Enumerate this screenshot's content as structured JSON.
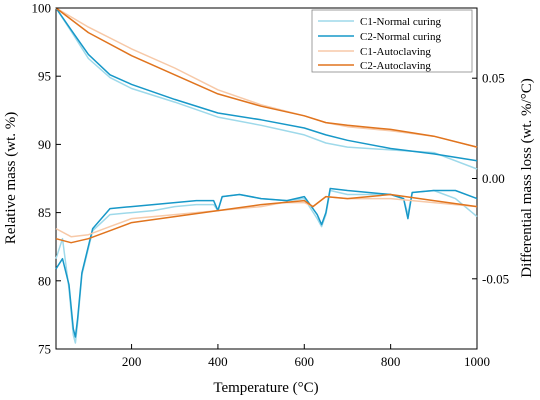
{
  "chart_data": {
    "type": "line",
    "title": "",
    "xlabel": "Temperature (°C)",
    "ylabel_left": "Relative mass (wt. %)",
    "ylabel_right": "Differential mass loss (wt. %/°C)",
    "xlim": [
      25,
      1000
    ],
    "ylim_left": [
      75,
      100
    ],
    "ylim_right": [
      -0.085,
      0.085
    ],
    "x_ticks": [
      200,
      400,
      600,
      800,
      1000
    ],
    "y_left_ticks": [
      75,
      80,
      85,
      90,
      95,
      100
    ],
    "y_right_ticks": [
      -0.05,
      0.0,
      0.05
    ],
    "y_right_tick_labels": [
      "-0.05",
      "0.00",
      "0.05"
    ],
    "grid": false,
    "legend_position": "top-right",
    "legend": [
      {
        "name": "C1-Normal curing",
        "color": "#9ED9EA"
      },
      {
        "name": "C2-Normal curing",
        "color": "#1798C8"
      },
      {
        "name": "C1-Autoclaving",
        "color": "#F7C9A8"
      },
      {
        "name": "C2-Autoclaving",
        "color": "#E0741E"
      }
    ],
    "tga_series": [
      {
        "name": "C1-Normal curing",
        "color": "#9ED9EA",
        "axis": "left",
        "x": [
          25,
          60,
          100,
          150,
          200,
          300,
          400,
          500,
          600,
          650,
          700,
          800,
          900,
          1000
        ],
        "y": [
          100,
          98.3,
          96.3,
          94.9,
          94.1,
          93.1,
          92.0,
          91.4,
          90.7,
          90.1,
          89.8,
          89.6,
          89.4,
          88.2
        ]
      },
      {
        "name": "C2-Normal curing",
        "color": "#1798C8",
        "axis": "left",
        "x": [
          25,
          60,
          100,
          150,
          200,
          300,
          400,
          500,
          600,
          650,
          700,
          800,
          900,
          1000
        ],
        "y": [
          100,
          98.4,
          96.6,
          95.1,
          94.4,
          93.3,
          92.3,
          91.8,
          91.2,
          90.7,
          90.3,
          89.7,
          89.3,
          88.8
        ]
      },
      {
        "name": "C1-Autoclaving",
        "color": "#F7C9A8",
        "axis": "left",
        "x": [
          25,
          100,
          200,
          300,
          400,
          500,
          600,
          650,
          700,
          800,
          900,
          1000
        ],
        "y": [
          100,
          98.6,
          97.0,
          95.6,
          94.0,
          92.9,
          92.1,
          91.6,
          91.3,
          91.0,
          90.6,
          89.8
        ]
      },
      {
        "name": "C2-Autoclaving",
        "color": "#E0741E",
        "axis": "left",
        "x": [
          25,
          100,
          200,
          300,
          400,
          500,
          600,
          650,
          700,
          800,
          900,
          1000
        ],
        "y": [
          100,
          98.2,
          96.5,
          95.1,
          93.7,
          92.8,
          92.1,
          91.6,
          91.4,
          91.1,
          90.6,
          89.8
        ]
      }
    ],
    "dtg_series": [
      {
        "name": "C1-Normal curing",
        "color": "#9ED9EA",
        "axis": "right",
        "x": [
          25,
          40,
          55,
          65,
          70,
          75,
          85,
          110,
          150,
          200,
          250,
          300,
          350,
          390,
          400,
          410,
          450,
          500,
          560,
          600,
          630,
          640,
          650,
          660,
          700,
          800,
          830,
          840,
          850,
          900,
          950,
          1000
        ],
        "y": [
          -0.04,
          -0.03,
          -0.055,
          -0.078,
          -0.082,
          -0.072,
          -0.048,
          -0.026,
          -0.018,
          -0.017,
          -0.016,
          -0.014,
          -0.013,
          -0.013,
          -0.016,
          -0.009,
          -0.008,
          -0.01,
          -0.011,
          -0.01,
          -0.02,
          -0.024,
          -0.018,
          -0.006,
          -0.008,
          -0.008,
          -0.01,
          -0.018,
          -0.007,
          -0.006,
          -0.01,
          -0.019
        ]
      },
      {
        "name": "C2-Normal curing",
        "color": "#1798C8",
        "axis": "right",
        "x": [
          25,
          40,
          55,
          65,
          70,
          75,
          85,
          110,
          150,
          200,
          250,
          300,
          350,
          390,
          400,
          410,
          450,
          500,
          560,
          600,
          630,
          640,
          650,
          660,
          700,
          800,
          830,
          840,
          850,
          900,
          950,
          1000
        ],
        "y": [
          -0.045,
          -0.04,
          -0.053,
          -0.075,
          -0.079,
          -0.07,
          -0.047,
          -0.025,
          -0.015,
          -0.014,
          -0.013,
          -0.012,
          -0.011,
          -0.011,
          -0.016,
          -0.009,
          -0.008,
          -0.01,
          -0.011,
          -0.009,
          -0.018,
          -0.023,
          -0.017,
          -0.005,
          -0.006,
          -0.008,
          -0.01,
          -0.02,
          -0.007,
          -0.006,
          -0.006,
          -0.01
        ]
      },
      {
        "name": "C1-Autoclaving",
        "color": "#F7C9A8",
        "axis": "right",
        "x": [
          25,
          60,
          100,
          150,
          200,
          300,
          400,
          500,
          550,
          600,
          620,
          650,
          700,
          800,
          900,
          1000
        ],
        "y": [
          -0.025,
          -0.029,
          -0.028,
          -0.024,
          -0.02,
          -0.018,
          -0.016,
          -0.014,
          -0.012,
          -0.012,
          -0.014,
          -0.009,
          -0.01,
          -0.01,
          -0.012,
          -0.014
        ]
      },
      {
        "name": "C2-Autoclaving",
        "color": "#E0741E",
        "axis": "right",
        "x": [
          25,
          60,
          100,
          150,
          200,
          300,
          400,
          500,
          550,
          600,
          620,
          650,
          700,
          800,
          900,
          1000
        ],
        "y": [
          -0.03,
          -0.032,
          -0.03,
          -0.026,
          -0.022,
          -0.019,
          -0.016,
          -0.013,
          -0.012,
          -0.011,
          -0.014,
          -0.009,
          -0.01,
          -0.008,
          -0.011,
          -0.014
        ]
      }
    ]
  }
}
